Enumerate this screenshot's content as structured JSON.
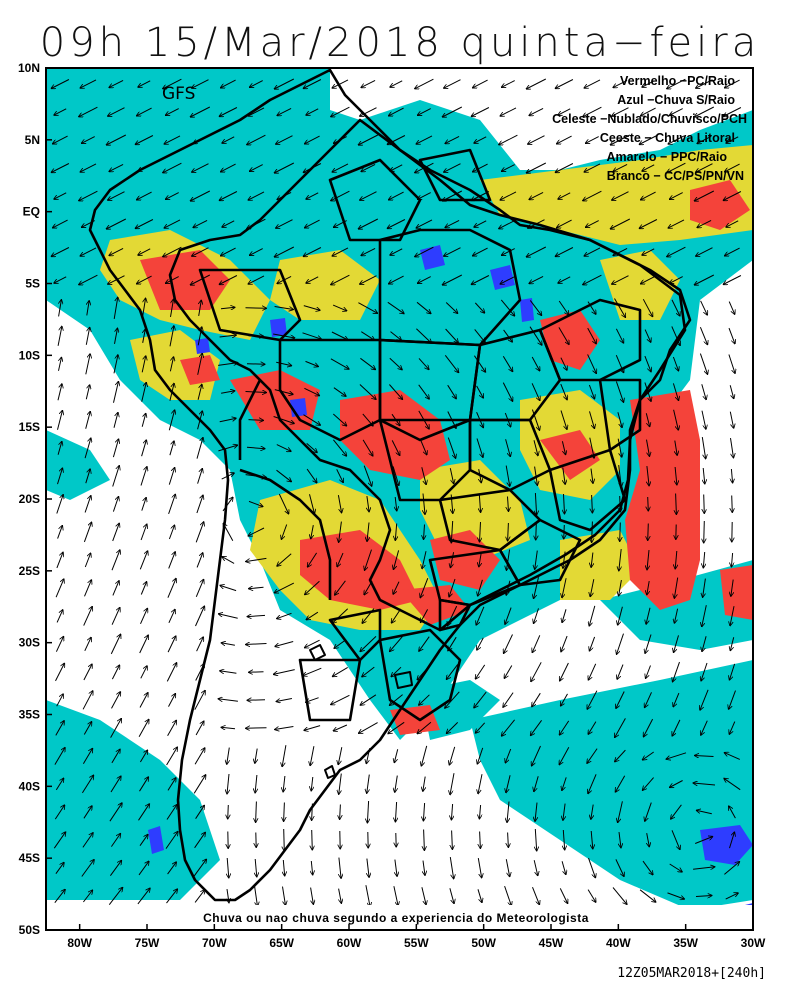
{
  "title": "09h 15/Mar/2018 quinta−feira",
  "model": "GFS",
  "legend": [
    "Vermelho −PC/Raio",
    "Azul −Chuva S/Raio",
    "Celeste −Nublado/Chuvisco/PCH",
    "Ceeste − Chuva Litoral",
    "Amarelo − PPC/Raio",
    "Branco − CC/PS/PN/VN"
  ],
  "footer_note": "Chuva ou nao chuva segundo a experiencia do Meteorologista",
  "run_stamp": "12Z05MAR2018+[240h]",
  "axes": {
    "lat_labels": [
      "10N",
      "5N",
      "EQ",
      "5S",
      "10S",
      "15S",
      "20S",
      "25S",
      "30S",
      "35S",
      "40S",
      "45S",
      "50S"
    ],
    "lon_labels": [
      "80W",
      "75W",
      "70W",
      "65W",
      "60W",
      "55W",
      "50W",
      "45W",
      "40W",
      "35W",
      "30W"
    ]
  },
  "colors": {
    "red": "#f4433a",
    "blue": "#2e3dff",
    "cyan": "#00c8c8",
    "yellow": "#e3d935",
    "white": "#ffffff"
  },
  "map": {
    "lon_range": [
      -82.5,
      -30
    ],
    "lat_range": [
      -50,
      10
    ]
  }
}
